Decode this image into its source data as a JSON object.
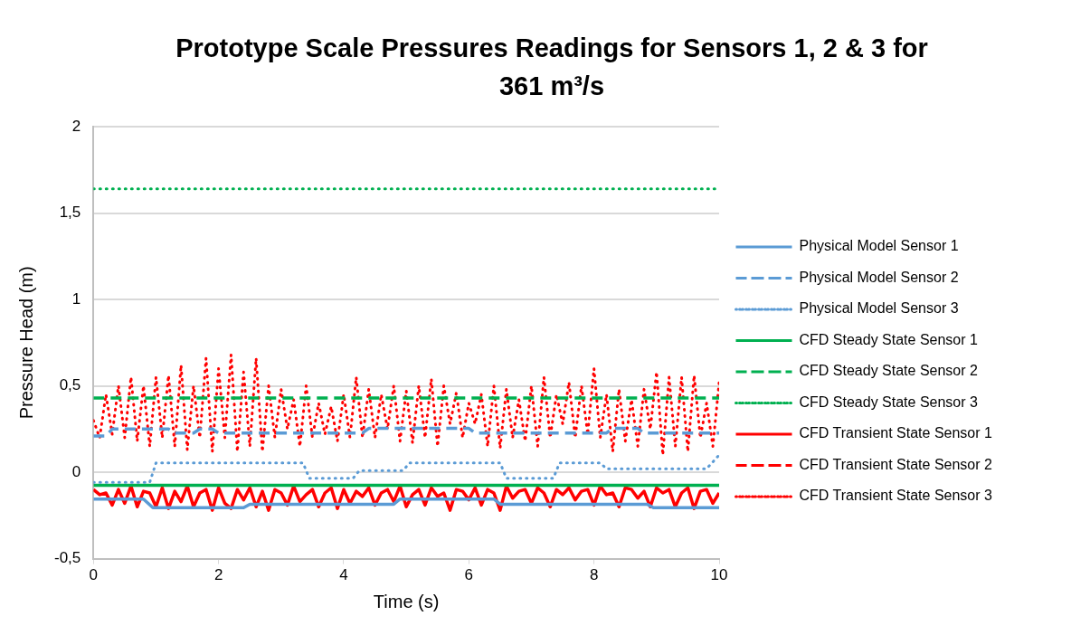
{
  "chart_data": {
    "type": "line",
    "title": "Prototype Scale Pressures Readings for Sensors 1, 2 & 3 for 361 m³/s",
    "xlabel": "Time (s)",
    "ylabel": "Pressure Head (m)",
    "xlim": [
      0,
      10
    ],
    "xticks": [
      0,
      2,
      4,
      6,
      8,
      10
    ],
    "ylim": [
      -0.5,
      2
    ],
    "yticks": [
      {
        "value": -0.5,
        "label": "-0,5"
      },
      0,
      {
        "value": 0.5,
        "label": "0,5"
      },
      1,
      {
        "value": 1.5,
        "label": "1,5"
      },
      2
    ],
    "grid": "y",
    "legend": "right",
    "marker": "none",
    "x": [
      0,
      0.1,
      0.2,
      0.3,
      0.4,
      0.5,
      0.6,
      0.7,
      0.8,
      0.9,
      1,
      1.1,
      1.2,
      1.3,
      1.4,
      1.5,
      1.6,
      1.7,
      1.8,
      1.9,
      2,
      2.1,
      2.2,
      2.3,
      2.4,
      2.5,
      2.6,
      2.7,
      2.8,
      2.9,
      3,
      3.1,
      3.2,
      3.3,
      3.4,
      3.5,
      3.6,
      3.7,
      3.8,
      3.9,
      4,
      4.1,
      4.2,
      4.3,
      4.4,
      4.5,
      4.6,
      4.7,
      4.8,
      4.9,
      5,
      5.1,
      5.2,
      5.3,
      5.4,
      5.5,
      5.6,
      5.7,
      5.8,
      5.9,
      6,
      6.1,
      6.2,
      6.3,
      6.4,
      6.5,
      6.6,
      6.7,
      6.8,
      6.9,
      7,
      7.1,
      7.2,
      7.3,
      7.4,
      7.5,
      7.6,
      7.7,
      7.8,
      7.9,
      8,
      8.1,
      8.2,
      8.3,
      8.4,
      8.5,
      8.6,
      8.7,
      8.8,
      8.9,
      9,
      9.1,
      9.2,
      9.3,
      9.4,
      9.5,
      9.6,
      9.7,
      9.8,
      9.9,
      10
    ],
    "series": [
      {
        "name": "Physical Model Sensor 1",
        "color": "#5b9bd5",
        "line_style": "solid",
        "x": [
          0,
          0.8,
          0.95,
          2.4,
          2.5,
          4.8,
          4.9,
          6.4,
          6.5,
          8.85,
          8.95,
          10
        ],
        "values": [
          -0.155,
          -0.155,
          -0.205,
          -0.205,
          -0.185,
          -0.185,
          -0.155,
          -0.155,
          -0.185,
          -0.185,
          -0.205,
          -0.205
        ]
      },
      {
        "name": "Physical Model Sensor 2",
        "color": "#5b9bd5",
        "line_style": "dashed",
        "x": [
          0,
          0.2,
          0.3,
          1.2,
          1.3,
          1.6,
          1.7,
          1.9,
          2.0,
          2.6,
          2.7,
          4.3,
          4.4,
          6.0,
          6.1,
          8.2,
          8.3,
          8.7,
          8.8,
          10
        ],
        "values": [
          0.21,
          0.21,
          0.25,
          0.25,
          0.227,
          0.227,
          0.25,
          0.25,
          0.227,
          0.227,
          0.227,
          0.227,
          0.254,
          0.254,
          0.227,
          0.227,
          0.254,
          0.254,
          0.227,
          0.227
        ]
      },
      {
        "name": "Physical Model Sensor 3",
        "color": "#5b9bd5",
        "line_style": "dotted",
        "x": [
          0,
          0.9,
          1.0,
          3.35,
          3.45,
          4.15,
          4.25,
          4.95,
          5.05,
          6.5,
          6.6,
          7.35,
          7.45,
          8.1,
          8.2,
          9.8,
          10
        ],
        "values": [
          -0.058,
          -0.058,
          0.054,
          0.054,
          -0.035,
          -0.035,
          0.01,
          0.01,
          0.054,
          0.054,
          -0.035,
          -0.035,
          0.054,
          0.054,
          0.02,
          0.02,
          0.1
        ]
      },
      {
        "name": "CFD Steady State Sensor 1",
        "color": "#00b050",
        "line_style": "solid",
        "x": [
          0,
          10
        ],
        "values": [
          -0.075,
          -0.075
        ]
      },
      {
        "name": "CFD Steady State Sensor 2",
        "color": "#00b050",
        "line_style": "dashed",
        "x": [
          0,
          10
        ],
        "values": [
          0.43,
          0.43
        ]
      },
      {
        "name": "CFD Steady State Sensor 3",
        "color": "#00b050",
        "line_style": "dotted",
        "x": [
          0,
          10
        ],
        "values": [
          1.64,
          1.64
        ]
      },
      {
        "name": "CFD Transient State Sensor 1",
        "color": "#ff0000",
        "line_style": "solid",
        "values": [
          -0.1,
          -0.13,
          -0.12,
          -0.19,
          -0.1,
          -0.18,
          -0.08,
          -0.2,
          -0.11,
          -0.12,
          -0.2,
          -0.09,
          -0.21,
          -0.11,
          -0.17,
          -0.08,
          -0.2,
          -0.12,
          -0.1,
          -0.22,
          -0.09,
          -0.18,
          -0.21,
          -0.1,
          -0.16,
          -0.09,
          -0.2,
          -0.11,
          -0.22,
          -0.1,
          -0.12,
          -0.19,
          -0.08,
          -0.17,
          -0.13,
          -0.1,
          -0.2,
          -0.12,
          -0.09,
          -0.21,
          -0.1,
          -0.18,
          -0.11,
          -0.14,
          -0.09,
          -0.19,
          -0.12,
          -0.1,
          -0.17,
          -0.08,
          -0.2,
          -0.13,
          -0.1,
          -0.19,
          -0.09,
          -0.14,
          -0.12,
          -0.22,
          -0.1,
          -0.11,
          -0.16,
          -0.09,
          -0.19,
          -0.1,
          -0.12,
          -0.22,
          -0.08,
          -0.15,
          -0.11,
          -0.1,
          -0.18,
          -0.09,
          -0.12,
          -0.2,
          -0.1,
          -0.13,
          -0.09,
          -0.16,
          -0.11,
          -0.1,
          -0.19,
          -0.08,
          -0.13,
          -0.12,
          -0.2,
          -0.09,
          -0.1,
          -0.15,
          -0.11,
          -0.2,
          -0.09,
          -0.12,
          -0.1,
          -0.2,
          -0.12,
          -0.09,
          -0.21,
          -0.11,
          -0.1,
          -0.18,
          -0.12
        ]
      },
      {
        "name": "CFD Transient State Sensor 2",
        "color": "#ff0000",
        "line_style": "dashed",
        "values": [
          null,
          null,
          null,
          null,
          null,
          null,
          null,
          null,
          null,
          null,
          null,
          null,
          null,
          null,
          null,
          null,
          null,
          null,
          null,
          null,
          null,
          null,
          null,
          null,
          null,
          null,
          null,
          null,
          null,
          null,
          null,
          null,
          null,
          null,
          null,
          null,
          null,
          null,
          null,
          null,
          null,
          null,
          null,
          null,
          null,
          null,
          null,
          null,
          null,
          null,
          null,
          null,
          null,
          null,
          null,
          null,
          null,
          null,
          null,
          null,
          null,
          null,
          null,
          null,
          null,
          null,
          null,
          null,
          null,
          null,
          null,
          null,
          null,
          null,
          null,
          null,
          null,
          null,
          null,
          null,
          null,
          null,
          null,
          null,
          null,
          null,
          null,
          null,
          null,
          null,
          null,
          null,
          null,
          null,
          null,
          null,
          null,
          null,
          null,
          null,
          null
        ]
      },
      {
        "name": "CFD Transient State Sensor 3",
        "color": "#ff0000",
        "line_style": "dotted",
        "values": [
          0.3,
          0.2,
          0.45,
          0.22,
          0.5,
          0.2,
          0.55,
          0.18,
          0.5,
          0.15,
          0.55,
          0.2,
          0.56,
          0.15,
          0.62,
          0.13,
          0.5,
          0.2,
          0.66,
          0.12,
          0.6,
          0.2,
          0.68,
          0.12,
          0.58,
          0.15,
          0.66,
          0.12,
          0.5,
          0.2,
          0.48,
          0.25,
          0.42,
          0.15,
          0.5,
          0.2,
          0.4,
          0.22,
          0.38,
          0.18,
          0.45,
          0.2,
          0.55,
          0.2,
          0.48,
          0.2,
          0.45,
          0.25,
          0.5,
          0.18,
          0.47,
          0.17,
          0.5,
          0.2,
          0.54,
          0.15,
          0.5,
          0.28,
          0.46,
          0.2,
          0.4,
          0.28,
          0.45,
          0.15,
          0.5,
          0.14,
          0.48,
          0.2,
          0.42,
          0.18,
          0.5,
          0.15,
          0.55,
          0.2,
          0.45,
          0.28,
          0.52,
          0.2,
          0.5,
          0.22,
          0.6,
          0.2,
          0.45,
          0.12,
          0.48,
          0.18,
          0.42,
          0.15,
          0.48,
          0.25,
          0.58,
          0.1,
          0.55,
          0.15,
          0.55,
          0.12,
          0.56,
          0.2,
          0.4,
          0.15,
          0.52
        ]
      }
    ]
  }
}
